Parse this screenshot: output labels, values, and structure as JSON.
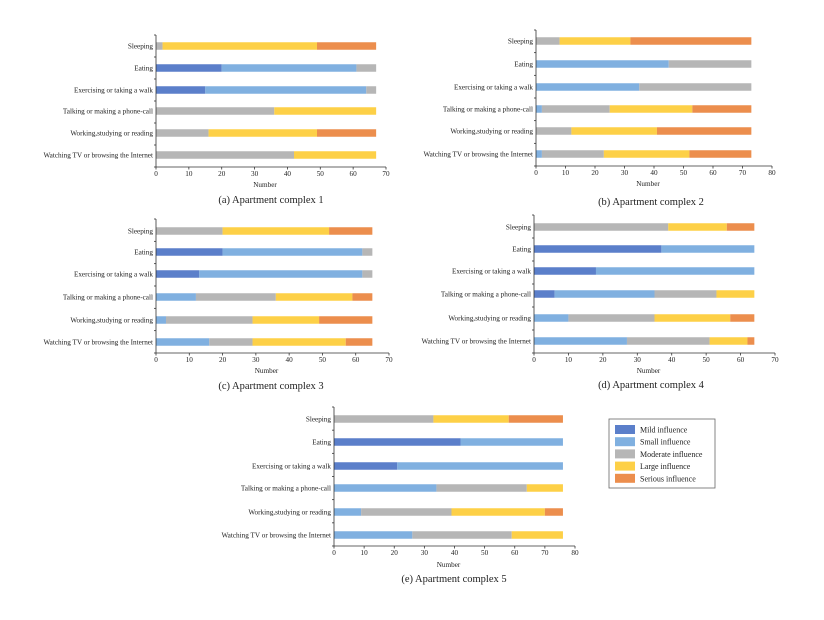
{
  "colors": {
    "mild": "#5b7fca",
    "small": "#80b0e0",
    "moderate": "#b6b6b6",
    "large": "#fdd047",
    "serious": "#ec8e4d"
  },
  "legend": {
    "items": [
      {
        "key": "mild",
        "label": "Mild influence"
      },
      {
        "key": "small",
        "label": "Small influence"
      },
      {
        "key": "moderate",
        "label": "Moderate influence"
      },
      {
        "key": "large",
        "label": "Large influence"
      },
      {
        "key": "serious",
        "label": "Serious influence"
      }
    ]
  },
  "chart_data": [
    {
      "type": "bar",
      "orientation": "horizontal",
      "stacked": true,
      "title": "(a) Apartment complex 1",
      "xlabel": "Number",
      "ylabel": "",
      "xlim": [
        0,
        70
      ],
      "xticks": [
        "0",
        "10",
        "20",
        "30",
        "40",
        "50",
        "60",
        "70"
      ],
      "categories": [
        "Sleeping",
        "Eating",
        "Exercising or taking a walk",
        "Talking or making a phone-call",
        "Working,studying or reading",
        "Watching TV or browsing the Internet"
      ],
      "series": [
        {
          "name": "Mild influence",
          "key": "mild",
          "values": [
            0,
            20,
            15,
            0,
            0,
            0
          ]
        },
        {
          "name": "Small influence",
          "key": "small",
          "values": [
            0,
            41,
            49,
            0,
            0,
            0
          ]
        },
        {
          "name": "Moderate influence",
          "key": "moderate",
          "values": [
            2,
            6,
            3,
            36,
            16,
            42
          ]
        },
        {
          "name": "Large influence",
          "key": "large",
          "values": [
            47,
            0,
            0,
            31,
            33,
            25
          ]
        },
        {
          "name": "Serious influence",
          "key": "serious",
          "values": [
            18,
            0,
            0,
            0,
            18,
            0
          ]
        }
      ],
      "grid": false,
      "legend": "shared-right"
    },
    {
      "type": "bar",
      "orientation": "horizontal",
      "stacked": true,
      "title": "(b) Apartment complex 2",
      "xlabel": "Number",
      "ylabel": "",
      "xlim": [
        0,
        80
      ],
      "xticks": [
        "0",
        "10",
        "20",
        "30",
        "40",
        "50",
        "60",
        "70",
        "80"
      ],
      "categories": [
        "Sleeping",
        "Eating",
        "Exercising or taking a walk",
        "Talking or making a phone-call",
        "Working,studying or reading",
        "Watching TV or browsing the Internet"
      ],
      "series": [
        {
          "name": "Mild influence",
          "key": "mild",
          "values": [
            0,
            0,
            0,
            0,
            0,
            0
          ]
        },
        {
          "name": "Small influence",
          "key": "small",
          "values": [
            0,
            45,
            35,
            2,
            0,
            2
          ]
        },
        {
          "name": "Moderate influence",
          "key": "moderate",
          "values": [
            8,
            28,
            38,
            23,
            12,
            21
          ]
        },
        {
          "name": "Large influence",
          "key": "large",
          "values": [
            24,
            0,
            0,
            28,
            29,
            29
          ]
        },
        {
          "name": "Serious influence",
          "key": "serious",
          "values": [
            41,
            0,
            0,
            20,
            32,
            21
          ]
        }
      ],
      "grid": false,
      "legend": "shared-right"
    },
    {
      "type": "bar",
      "orientation": "horizontal",
      "stacked": true,
      "title": "(c) Apartment complex 3",
      "xlabel": "Number",
      "ylabel": "",
      "xlim": [
        0,
        70
      ],
      "xticks": [
        "0",
        "10",
        "20",
        "30",
        "40",
        "50",
        "60",
        "70"
      ],
      "categories": [
        "Sleeping",
        "Eating",
        "Exercising or taking a walk",
        "Talking or making a phone-call",
        "Working,studying or reading",
        "Watching TV or browsing the Internet"
      ],
      "series": [
        {
          "name": "Mild influence",
          "key": "mild",
          "values": [
            0,
            20,
            13,
            0,
            0,
            0
          ]
        },
        {
          "name": "Small influence",
          "key": "small",
          "values": [
            0,
            42,
            49,
            12,
            3,
            16
          ]
        },
        {
          "name": "Moderate influence",
          "key": "moderate",
          "values": [
            20,
            3,
            3,
            24,
            26,
            13
          ]
        },
        {
          "name": "Large influence",
          "key": "large",
          "values": [
            32,
            0,
            0,
            23,
            20,
            28
          ]
        },
        {
          "name": "Serious influence",
          "key": "serious",
          "values": [
            13,
            0,
            0,
            6,
            16,
            8
          ]
        }
      ],
      "grid": false,
      "legend": "shared-right"
    },
    {
      "type": "bar",
      "orientation": "horizontal",
      "stacked": true,
      "title": "(d) Apartment complex 4",
      "xlabel": "Number",
      "ylabel": "",
      "xlim": [
        0,
        70
      ],
      "xticks": [
        "0",
        "10",
        "20",
        "30",
        "40",
        "50",
        "60",
        "70"
      ],
      "categories": [
        "Sleeping",
        "Eating",
        "Exercising or taking a walk",
        "Talking or making a phone-call",
        "Working,studying or reading",
        "Watching TV or browsing the Internet"
      ],
      "series": [
        {
          "name": "Mild influence",
          "key": "mild",
          "values": [
            0,
            37,
            18,
            6,
            0,
            0
          ]
        },
        {
          "name": "Small influence",
          "key": "small",
          "values": [
            0,
            27,
            46,
            29,
            10,
            27
          ]
        },
        {
          "name": "Moderate influence",
          "key": "moderate",
          "values": [
            39,
            0,
            0,
            18,
            25,
            24
          ]
        },
        {
          "name": "Large influence",
          "key": "large",
          "values": [
            17,
            0,
            0,
            11,
            22,
            11
          ]
        },
        {
          "name": "Serious influence",
          "key": "serious",
          "values": [
            8,
            0,
            0,
            0,
            7,
            2
          ]
        }
      ],
      "grid": false,
      "legend": "shared-right"
    },
    {
      "type": "bar",
      "orientation": "horizontal",
      "stacked": true,
      "title": "(e) Apartment complex 5",
      "xlabel": "Number",
      "ylabel": "",
      "xlim": [
        0,
        80
      ],
      "xticks": [
        "0",
        "10",
        "20",
        "30",
        "40",
        "50",
        "60",
        "70",
        "80"
      ],
      "categories": [
        "Sleeping",
        "Eating",
        "Exercising or taking a walk",
        "Talking or making a phone-call",
        "Working,studying or reading",
        "Watching TV or browsing the Internet"
      ],
      "series": [
        {
          "name": "Mild influence",
          "key": "mild",
          "values": [
            0,
            42,
            21,
            0,
            0,
            0
          ]
        },
        {
          "name": "Small influence",
          "key": "small",
          "values": [
            0,
            34,
            55,
            34,
            9,
            26
          ]
        },
        {
          "name": "Moderate influence",
          "key": "moderate",
          "values": [
            33,
            0,
            0,
            30,
            30,
            33
          ]
        },
        {
          "name": "Large influence",
          "key": "large",
          "values": [
            25,
            0,
            0,
            12,
            31,
            17
          ]
        },
        {
          "name": "Serious influence",
          "key": "serious",
          "values": [
            18,
            0,
            0,
            0,
            6,
            0
          ]
        }
      ],
      "grid": false,
      "legend": "shared-right"
    }
  ]
}
